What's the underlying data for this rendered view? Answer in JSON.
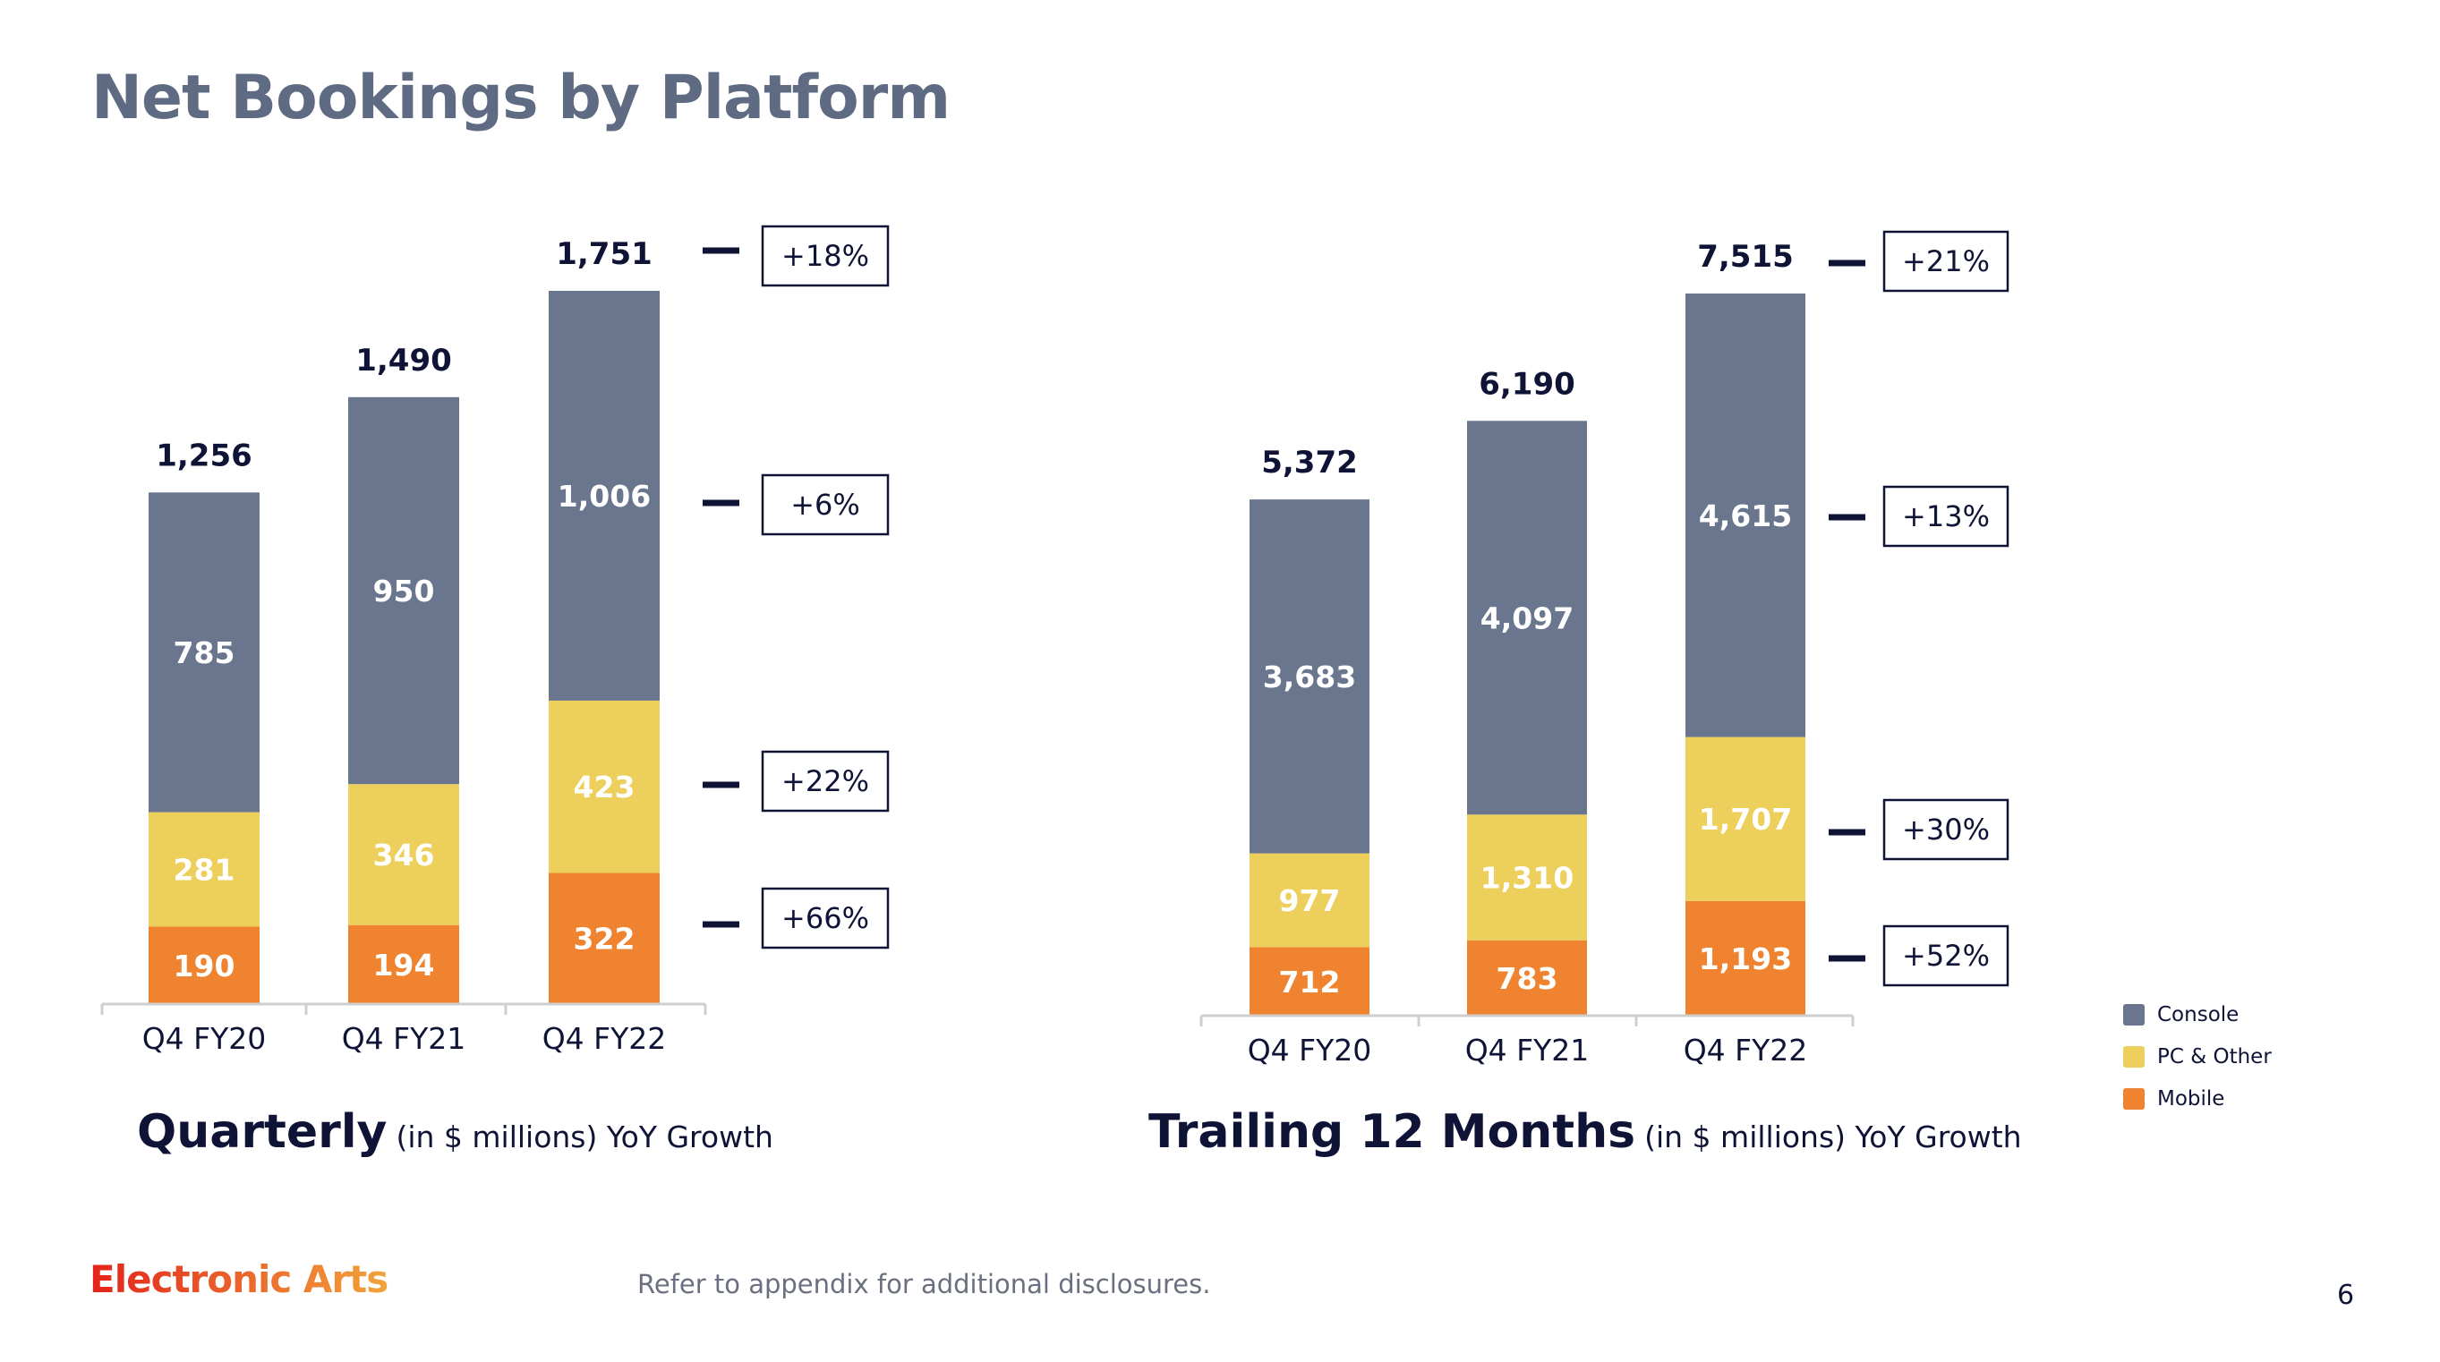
{
  "title": "Net Bookings by Platform",
  "colors": {
    "console": "#69768d",
    "pc": "#ecd05b",
    "mobile": "#ef8330",
    "text_dark": "#0f1437",
    "title": "#5f6b82"
  },
  "legend": [
    {
      "label": "Console",
      "color": "#69768d"
    },
    {
      "label": "PC & Other",
      "color": "#ecd05b"
    },
    {
      "label": "Mobile",
      "color": "#ef8330"
    }
  ],
  "chart_data": [
    {
      "type": "bar",
      "stacked": true,
      "title": "Quarterly",
      "subtitle": "(in $ millions) YoY Growth",
      "categories": [
        "Q4 FY20",
        "Q4 FY21",
        "Q4 FY22"
      ],
      "series": [
        {
          "name": "Mobile",
          "values": [
            190,
            194,
            322
          ]
        },
        {
          "name": "PC & Other",
          "values": [
            281,
            346,
            423
          ]
        },
        {
          "name": "Console",
          "values": [
            785,
            950,
            1006
          ]
        }
      ],
      "totals": [
        "1,256",
        "1,490",
        "1,751"
      ],
      "yoy_growth": {
        "total": "+18%",
        "Console": "+6%",
        "PC & Other": "+22%",
        "Mobile": "+66%"
      },
      "ylim": [
        0,
        1751
      ]
    },
    {
      "type": "bar",
      "stacked": true,
      "title": "Trailing 12 Months",
      "subtitle": "(in $ millions) YoY Growth",
      "categories": [
        "Q4 FY20",
        "Q4 FY21",
        "Q4 FY22"
      ],
      "series": [
        {
          "name": "Mobile",
          "values": [
            712,
            783,
            1193
          ]
        },
        {
          "name": "PC & Other",
          "values": [
            977,
            1310,
            1707
          ]
        },
        {
          "name": "Console",
          "values": [
            3683,
            4097,
            4615
          ]
        }
      ],
      "totals": [
        "5,372",
        "6,190",
        "7,515"
      ],
      "yoy_growth": {
        "total": "+21%",
        "Console": "+13%",
        "PC & Other": "+30%",
        "Mobile": "+52%"
      },
      "ylim": [
        0,
        7515
      ]
    }
  ],
  "footer": {
    "logo": "Electronic Arts",
    "disclaimer": "Refer to appendix for additional disclosures.",
    "page": "6"
  }
}
